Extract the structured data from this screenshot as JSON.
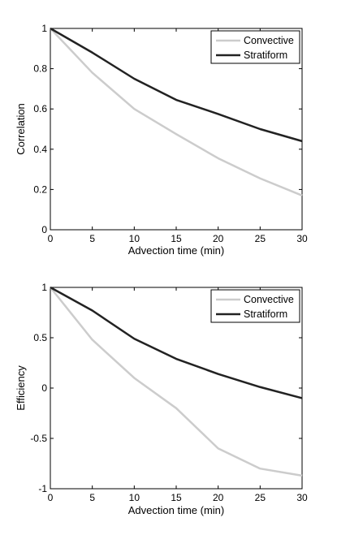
{
  "chart_data": [
    {
      "type": "line",
      "xlabel": "Advection time (min)",
      "ylabel": "Correlation",
      "xlim": [
        0,
        30
      ],
      "ylim": [
        0,
        1
      ],
      "xticks": [
        "0",
        "5",
        "10",
        "15",
        "20",
        "25",
        "30"
      ],
      "yticks": [
        "0",
        "0.2",
        "0.4",
        "0.6",
        "0.8",
        "1"
      ],
      "grid": false,
      "legend_position": "top-right",
      "x": [
        0,
        5,
        10,
        15,
        20,
        25,
        30
      ],
      "series": [
        {
          "name": "Convective",
          "color": "#cccccc",
          "values": [
            1.0,
            0.78,
            0.6,
            0.475,
            0.355,
            0.255,
            0.17
          ]
        },
        {
          "name": "Stratiform",
          "color": "#222222",
          "values": [
            1.0,
            0.88,
            0.75,
            0.645,
            0.575,
            0.5,
            0.44
          ]
        }
      ]
    },
    {
      "type": "line",
      "xlabel": "Advection time (min)",
      "ylabel": "Efficiency",
      "xlim": [
        0,
        30
      ],
      "ylim": [
        -1,
        1
      ],
      "xticks": [
        "0",
        "5",
        "10",
        "15",
        "20",
        "25",
        "30"
      ],
      "yticks": [
        "-1",
        "-0.5",
        "0",
        "0.5",
        "1"
      ],
      "grid": false,
      "legend_position": "top-right",
      "x": [
        0,
        5,
        10,
        15,
        20,
        25,
        30
      ],
      "series": [
        {
          "name": "Convective",
          "color": "#cccccc",
          "values": [
            1.0,
            0.48,
            0.1,
            -0.2,
            -0.6,
            -0.8,
            -0.87
          ]
        },
        {
          "name": "Stratiform",
          "color": "#222222",
          "values": [
            1.0,
            0.77,
            0.49,
            0.29,
            0.14,
            0.01,
            -0.1
          ]
        }
      ]
    }
  ]
}
